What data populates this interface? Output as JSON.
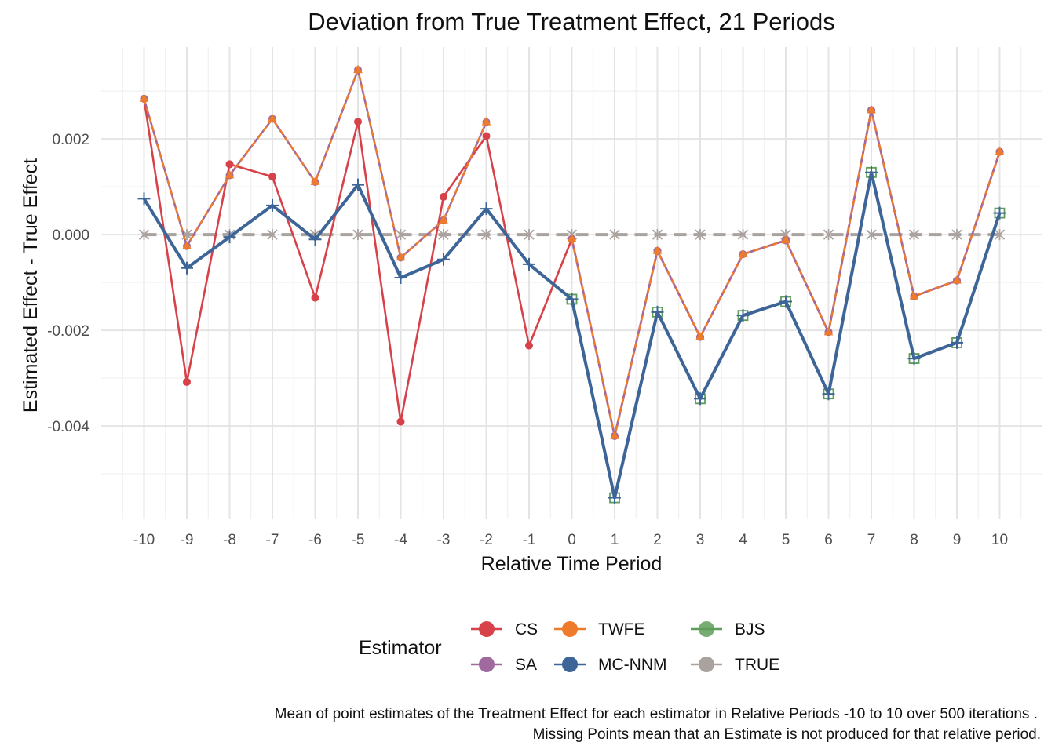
{
  "chart_data": {
    "type": "line",
    "title": "Deviation from True Treatment Effect, 21 Periods",
    "xlabel": "Relative Time Period",
    "ylabel": "Estimated Effect - True Effect",
    "x": [
      -10,
      -9,
      -8,
      -7,
      -6,
      -5,
      -4,
      -3,
      -2,
      -1,
      0,
      1,
      2,
      3,
      4,
      5,
      6,
      7,
      8,
      9,
      10
    ],
    "x_tick_labels": [
      "-10",
      "-9",
      "-8",
      "-7",
      "-6",
      "-5",
      "-4",
      "-3",
      "-2",
      "-1",
      "0",
      "1",
      "2",
      "3",
      "4",
      "5",
      "6",
      "7",
      "8",
      "9",
      "10"
    ],
    "y_ticks": [
      -0.004,
      -0.002,
      0.0,
      0.002
    ],
    "y_tick_labels": [
      "-0.004",
      "-0.002",
      "0.000",
      "0.002"
    ],
    "xlim": [
      -11,
      11
    ],
    "ylim": [
      -0.00595,
      0.00392
    ],
    "grid": true,
    "legend": {
      "title": "Estimator",
      "placement": "bottom"
    },
    "caption": [
      "Mean of point estimates of the Treatment Effect for each estimator in Relative Periods -10 to 10 over 500 iterations .",
      "Missing Points mean that an Estimate is not produced for that relative period."
    ],
    "series": [
      {
        "name": "CS",
        "color": "#d7424a",
        "marker": "circle",
        "dashed": false,
        "width": 2.6,
        "values": [
          0.00284,
          -0.00308,
          0.00147,
          0.00121,
          -0.00132,
          0.00236,
          -0.00391,
          0.00079,
          0.00206,
          -0.00232,
          -9e-05,
          -0.00421,
          -0.00034,
          -0.00214,
          -0.00041,
          -0.00012,
          -0.00204,
          0.0026,
          -0.00129,
          -0.00096,
          0.00173
        ]
      },
      {
        "name": "SA",
        "color": "#a06a9e",
        "marker": "circle",
        "dashed": false,
        "width": 2.6,
        "values": [
          0.00284,
          -0.00024,
          0.00124,
          0.00242,
          0.0011,
          0.00344,
          -0.00048,
          0.0003,
          0.00235,
          null,
          -9e-05,
          -0.00421,
          -0.00034,
          -0.00214,
          -0.00041,
          -0.00012,
          -0.00204,
          0.0026,
          -0.00129,
          -0.00096,
          0.00173
        ]
      },
      {
        "name": "TWFE",
        "color": "#ee7a2c",
        "marker": "triangle",
        "dashed": true,
        "width": 2.4,
        "values": [
          0.00284,
          -0.00024,
          0.00124,
          0.00242,
          0.0011,
          0.00344,
          -0.00048,
          0.0003,
          0.00235,
          null,
          -9e-05,
          -0.00421,
          -0.00034,
          -0.00214,
          -0.00041,
          -0.00012,
          -0.00204,
          0.0026,
          -0.00129,
          -0.00096,
          0.00173
        ]
      },
      {
        "name": "MC-NNM",
        "color": "#3e6597",
        "marker": "plus",
        "dashed": false,
        "width": 4,
        "values": [
          0.00075,
          -0.0007,
          -5e-05,
          0.00061,
          -0.0001,
          0.00104,
          -0.0009,
          -0.00052,
          0.00054,
          -0.00062,
          -0.00135,
          -0.0055,
          -0.00162,
          -0.00343,
          -0.00169,
          -0.0014,
          -0.00333,
          0.0013,
          -0.00259,
          -0.00226,
          0.00045
        ]
      },
      {
        "name": "BJS",
        "color": "#5f9e5a",
        "marker": "square-cross",
        "dashed": false,
        "width": 2.6,
        "values": [
          null,
          null,
          null,
          null,
          null,
          null,
          null,
          null,
          null,
          null,
          -0.00135,
          -0.0055,
          -0.00162,
          -0.00343,
          -0.00169,
          -0.0014,
          -0.00333,
          0.0013,
          -0.00259,
          -0.00226,
          0.00045
        ]
      },
      {
        "name": "TRUE",
        "color": "#aaa29e",
        "marker": "asterisk",
        "dashed": true,
        "width": 4,
        "values": [
          0,
          0,
          0,
          0,
          0,
          0,
          0,
          0,
          0,
          0,
          0,
          0,
          0,
          0,
          0,
          0,
          0,
          0,
          0,
          0,
          0
        ]
      }
    ]
  }
}
